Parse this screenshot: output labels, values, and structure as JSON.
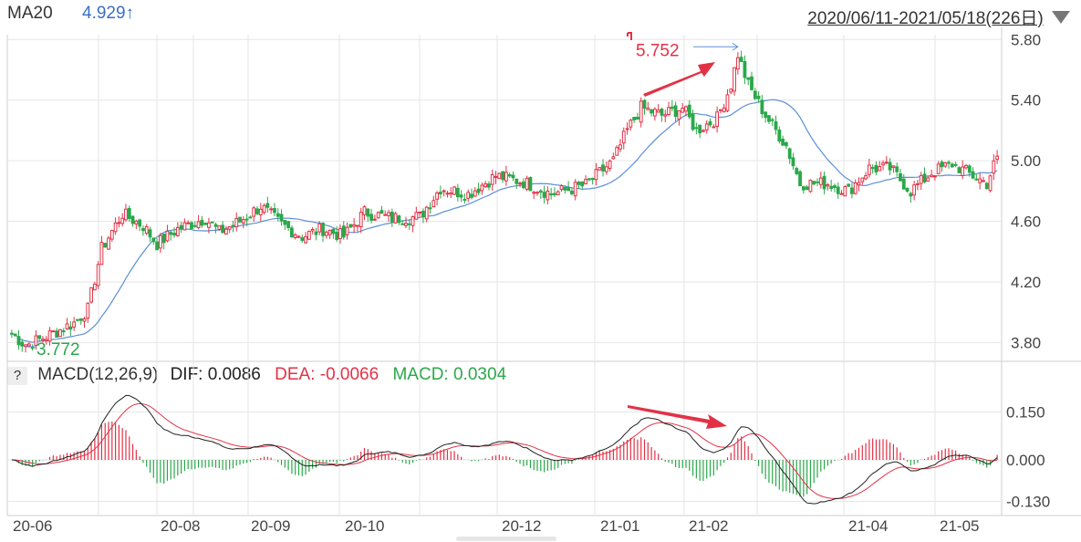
{
  "header": {
    "ma_label": "MA20",
    "ma_value": "4.929↑",
    "date_range": "2020/06/11-2021/05/18(226日)"
  },
  "macd_legend": {
    "help": "?",
    "title": "MACD(12,26,9)",
    "dif": "DIF: 0.0086",
    "dea": "DEA: -0.0066",
    "macd": "MACD: 0.0304"
  },
  "colors": {
    "up": "#e23246",
    "down": "#2aa84a",
    "ma": "#5b8fd6",
    "dif_line": "#222222",
    "dea_line": "#e23246",
    "grid": "#e6e6e6",
    "annot_high": "#e23246",
    "annot_low": "#2aa84a"
  },
  "chart_data": [
    {
      "type": "candlestick",
      "title": "",
      "ylim": [
        3.7,
        5.88
      ],
      "yticks": [
        3.8,
        4.2,
        4.6,
        5.0,
        5.4,
        5.8
      ],
      "ytick_labels": [
        "3.80",
        "4.20",
        "4.60",
        "5.00",
        "5.40",
        "5.80"
      ],
      "xtick_labels": [
        "20-06",
        "20-08",
        "20-09",
        "20-10",
        "20-12",
        "21-01",
        "21-02",
        "21-04",
        "21-05"
      ],
      "waypoints": [
        [
          0,
          3.86
        ],
        [
          4,
          3.78
        ],
        [
          10,
          3.84
        ],
        [
          18,
          3.93
        ],
        [
          22,
          4.02
        ],
        [
          26,
          4.42
        ],
        [
          32,
          4.65
        ],
        [
          38,
          4.57
        ],
        [
          42,
          4.45
        ],
        [
          48,
          4.55
        ],
        [
          56,
          4.62
        ],
        [
          60,
          4.53
        ],
        [
          66,
          4.6
        ],
        [
          72,
          4.7
        ],
        [
          78,
          4.58
        ],
        [
          84,
          4.5
        ],
        [
          90,
          4.55
        ],
        [
          96,
          4.5
        ],
        [
          102,
          4.66
        ],
        [
          110,
          4.62
        ],
        [
          118,
          4.63
        ],
        [
          124,
          4.82
        ],
        [
          132,
          4.78
        ],
        [
          140,
          4.9
        ],
        [
          148,
          4.86
        ],
        [
          156,
          4.78
        ],
        [
          166,
          4.84
        ],
        [
          174,
          5.0
        ],
        [
          178,
          5.2
        ],
        [
          182,
          5.35
        ],
        [
          188,
          5.3
        ],
        [
          194,
          5.35
        ],
        [
          198,
          5.2
        ],
        [
          204,
          5.28
        ],
        [
          208,
          5.5
        ],
        [
          210,
          5.7
        ],
        [
          213,
          5.5
        ],
        [
          218,
          5.3
        ],
        [
          224,
          5.1
        ],
        [
          228,
          4.85
        ],
        [
          236,
          4.85
        ],
        [
          242,
          4.8
        ],
        [
          248,
          4.95
        ],
        [
          254,
          4.95
        ],
        [
          260,
          4.8
        ],
        [
          266,
          4.92
        ],
        [
          272,
          4.98
        ],
        [
          278,
          4.9
        ],
        [
          282,
          4.85
        ],
        [
          285,
          5.03
        ]
      ],
      "high": {
        "label": "5.752",
        "value": 5.752
      },
      "low": {
        "label": "3.772",
        "value": 3.772
      },
      "ma_line": {
        "name": "MA20",
        "last": 4.929
      }
    },
    {
      "type": "macd",
      "name": "MACD(12,26,9)",
      "ylim": [
        -0.16,
        0.24
      ],
      "yticks": [
        0.15,
        0.0,
        -0.13
      ],
      "ytick_labels": [
        "0.150",
        "0.000",
        "-0.130"
      ],
      "dif_last": 0.0086,
      "dea_last": -0.0066,
      "macd_last": 0.0304
    }
  ]
}
